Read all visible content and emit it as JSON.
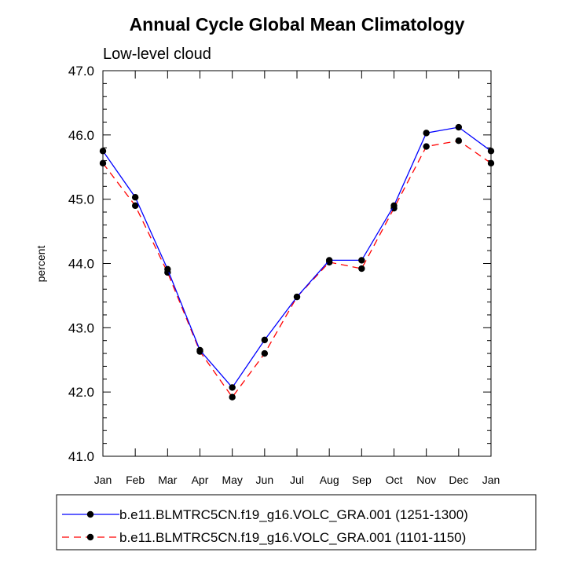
{
  "chart_data": {
    "type": "line",
    "title": "Annual Cycle Global Mean Climatology",
    "subtitle": "Low-level cloud",
    "xlabel": "",
    "ylabel": "percent",
    "categories": [
      "Jan",
      "Feb",
      "Mar",
      "Apr",
      "May",
      "Jun",
      "Jul",
      "Aug",
      "Sep",
      "Oct",
      "Nov",
      "Dec",
      "Jan"
    ],
    "yticks": [
      "41.0",
      "42.0",
      "43.0",
      "44.0",
      "45.0",
      "46.0",
      "47.0"
    ],
    "ylim": [
      41.0,
      47.0
    ],
    "grid": false,
    "legend_position": "bottom",
    "series": [
      {
        "name": "b.e11.BLMTRC5CN.f19_g16.VOLC_GRA.001 (1251-1300)",
        "color": "#0000ff",
        "dash": "solid",
        "marker": "filled-circle",
        "values": [
          45.75,
          45.03,
          43.91,
          42.65,
          42.07,
          42.81,
          43.48,
          44.05,
          44.05,
          44.9,
          46.03,
          46.12,
          45.75
        ]
      },
      {
        "name": "b.e11.BLMTRC5CN.f19_g16.VOLC_GRA.001 (1101-1150)",
        "color": "#ff0000",
        "dash": "dashed",
        "marker": "filled-circle",
        "values": [
          45.56,
          44.9,
          43.86,
          42.63,
          41.92,
          42.6,
          43.48,
          44.02,
          43.92,
          44.86,
          45.82,
          45.91,
          45.56
        ]
      }
    ]
  }
}
